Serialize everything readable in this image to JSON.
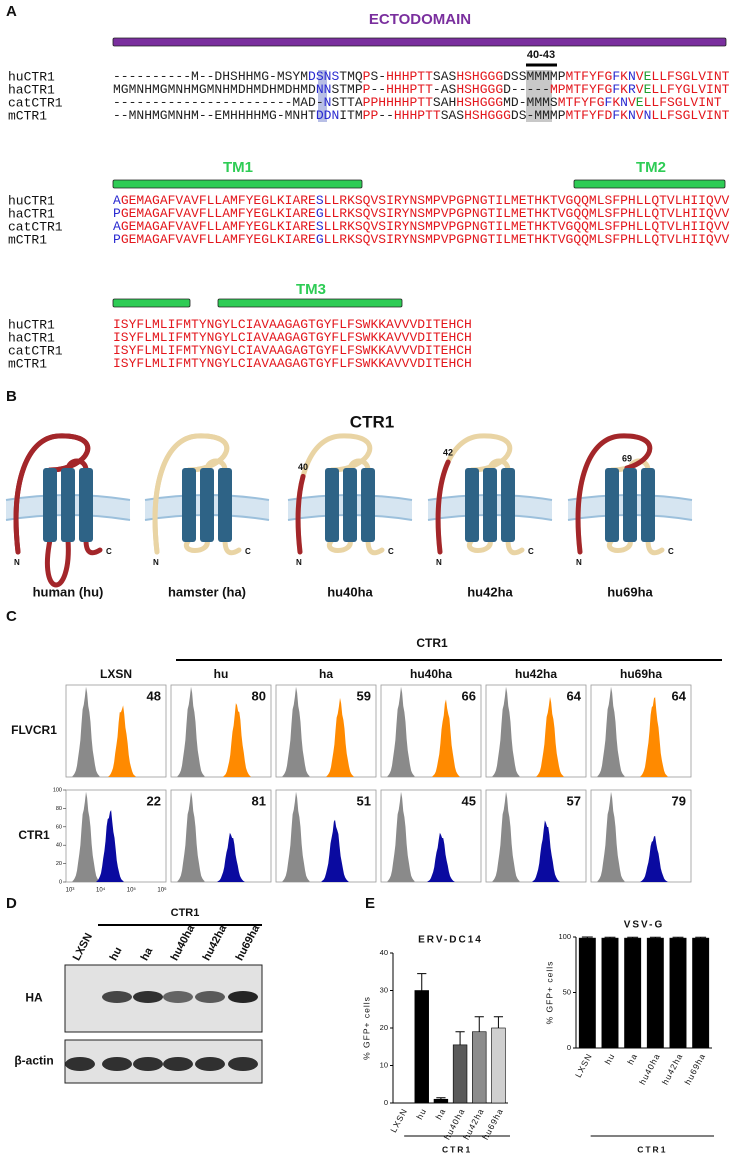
{
  "panel_a": {
    "letter": "A",
    "annotation": "40-43",
    "blocks": [
      {
        "domains": [
          {
            "label": "ECTODOMAIN",
            "color": "#7a2f9e"
          }
        ],
        "rows": [
          {
            "name": "huCTR1",
            "segments": [
              {
                "text": "----------M--DHSHHMG-MSYM",
                "color": "#222222"
              },
              {
                "text": "DSNS",
                "color": "#2a2ad0"
              },
              {
                "text": "TMQ",
                "color": "#222222"
              },
              {
                "text": "P",
                "color": "#e3161c"
              },
              {
                "text": "S-",
                "color": "#222222"
              },
              {
                "text": "HHHPTT",
                "color": "#e3161c"
              },
              {
                "text": "SAS",
                "color": "#222222"
              },
              {
                "text": "HSHGGG",
                "color": "#e3161c"
              },
              {
                "text": "DSSMMMMP",
                "color": "#222222"
              },
              {
                "text": "MTFYFG",
                "color": "#e3161c"
              },
              {
                "text": "F",
                "color": "#2a2ad0"
              },
              {
                "text": "K",
                "color": "#e3161c"
              },
              {
                "text": "N",
                "color": "#2a2ad0"
              },
              {
                "text": "V",
                "color": "#e3161c"
              },
              {
                "text": "E",
                "color": "#1e9e2e"
              },
              {
                "text": "LLFSGLVINT",
                "color": "#e3161c"
              }
            ]
          },
          {
            "name": "haCTR1",
            "segments": [
              {
                "text": "MGMNHMGMNHMGMNHMDHMDHMDHMD",
                "color": "#222222"
              },
              {
                "text": "NN",
                "color": "#2a2ad0"
              },
              {
                "text": "STMP",
                "color": "#222222"
              },
              {
                "text": "P",
                "color": "#e3161c"
              },
              {
                "text": "--",
                "color": "#222222"
              },
              {
                "text": "HHHPTT",
                "color": "#e3161c"
              },
              {
                "text": "-AS",
                "color": "#222222"
              },
              {
                "text": "HSHGGG",
                "color": "#e3161c"
              },
              {
                "text": "D-----",
                "color": "#222222"
              },
              {
                "text": "MPMTFYFG",
                "color": "#e3161c"
              },
              {
                "text": "F",
                "color": "#2a2ad0"
              },
              {
                "text": "K",
                "color": "#e3161c"
              },
              {
                "text": "R",
                "color": "#2a2ad0"
              },
              {
                "text": "V",
                "color": "#e3161c"
              },
              {
                "text": "E",
                "color": "#1e9e2e"
              },
              {
                "text": "LLFYGLVINT",
                "color": "#e3161c"
              }
            ]
          },
          {
            "name": "catCTR1",
            "segments": [
              {
                "text": "-----------------------MAD-",
                "color": "#222222"
              },
              {
                "text": "N",
                "color": "#2a2ad0"
              },
              {
                "text": "STTA",
                "color": "#222222"
              },
              {
                "text": "PPHHHHPTT",
                "color": "#e3161c"
              },
              {
                "text": "SAH",
                "color": "#222222"
              },
              {
                "text": "HSHGGG",
                "color": "#e3161c"
              },
              {
                "text": "MD-MMMS",
                "color": "#222222"
              },
              {
                "text": "MTFYFG",
                "color": "#e3161c"
              },
              {
                "text": "F",
                "color": "#2a2ad0"
              },
              {
                "text": "K",
                "color": "#e3161c"
              },
              {
                "text": "N",
                "color": "#2a2ad0"
              },
              {
                "text": "V",
                "color": "#e3161c"
              },
              {
                "text": "E",
                "color": "#1e9e2e"
              },
              {
                "text": "LLFSGLVINT",
                "color": "#e3161c"
              }
            ]
          },
          {
            "name": "mCTR1",
            "segments": [
              {
                "text": "--MNHMGMNHM--EMHHHHMG-MNHT",
                "color": "#222222"
              },
              {
                "text": "DDN",
                "color": "#2a2ad0"
              },
              {
                "text": "ITM",
                "color": "#222222"
              },
              {
                "text": "PP",
                "color": "#e3161c"
              },
              {
                "text": "--",
                "color": "#222222"
              },
              {
                "text": "HHHPTT",
                "color": "#e3161c"
              },
              {
                "text": "SAS",
                "color": "#222222"
              },
              {
                "text": "HSHGGG",
                "color": "#e3161c"
              },
              {
                "text": "DS-MMMP",
                "color": "#222222"
              },
              {
                "text": "MTFYFD",
                "color": "#e3161c"
              },
              {
                "text": "F",
                "color": "#2a2ad0"
              },
              {
                "text": "K",
                "color": "#e3161c"
              },
              {
                "text": "N",
                "color": "#2a2ad0"
              },
              {
                "text": "V",
                "color": "#e3161c"
              },
              {
                "text": "N",
                "color": "#2a2ad0"
              },
              {
                "text": "LLFSGLVINT",
                "color": "#e3161c"
              }
            ]
          }
        ]
      },
      {
        "domains": [
          {
            "label": "TM1",
            "color": "#2ecc55"
          },
          {
            "label": "TM2",
            "color": "#2ecc55"
          }
        ],
        "rows": [
          {
            "name": "huCTR1",
            "segments": [
              {
                "text": "A",
                "color": "#2a2ad0"
              },
              {
                "text": "GEMAGAFVAVFLLAMFYEGLKIARE",
                "color": "#e3161c"
              },
              {
                "text": "S",
                "color": "#2a2ad0"
              },
              {
                "text": "LLRKSQVSIRYNSMPVPGPNGTILMETHKTVGQQMLSFPHLLQTVLHIIQVV",
                "color": "#e3161c"
              }
            ]
          },
          {
            "name": "haCTR1",
            "segments": [
              {
                "text": "P",
                "color": "#2a2ad0"
              },
              {
                "text": "GEMAGAFVAVFLLAMFYEGLKIARE",
                "color": "#e3161c"
              },
              {
                "text": "G",
                "color": "#2a2ad0"
              },
              {
                "text": "LLRKSQVSIRYNSMPVPGPNGTILMETHKTVGQQMLSFPHLLQTVLHIIQVV",
                "color": "#e3161c"
              }
            ]
          },
          {
            "name": "catCTR1",
            "segments": [
              {
                "text": "A",
                "color": "#2a2ad0"
              },
              {
                "text": "GEMAGAFVAVFLLAMFYEGLKIARE",
                "color": "#e3161c"
              },
              {
                "text": "S",
                "color": "#2a2ad0"
              },
              {
                "text": "LLRKSQVSIRYNSMPVPGPNGTILMETHKTVGQQMLSFPHLLQTVLHIIQVV",
                "color": "#e3161c"
              }
            ]
          },
          {
            "name": "mCTR1",
            "segments": [
              {
                "text": "P",
                "color": "#2a2ad0"
              },
              {
                "text": "GEMAGAFVAVFLLAMFYEGLKIARE",
                "color": "#e3161c"
              },
              {
                "text": "G",
                "color": "#2a2ad0"
              },
              {
                "text": "LLRKSQVSIRYNSMPVPGPNGTILMETHKTVGQQMLSFPHLLQTVLHIIQVV",
                "color": "#e3161c"
              }
            ]
          }
        ]
      },
      {
        "domains": [
          {
            "label": "TM3",
            "color": "#2ecc55"
          }
        ],
        "rows": [
          {
            "name": "huCTR1",
            "segments": [
              {
                "text": "ISYFLMLIFMTYNGYLCIAVAAGAGTGYFLFSWKKAVVVDITEHCH",
                "color": "#e3161c"
              }
            ]
          },
          {
            "name": "haCTR1",
            "segments": [
              {
                "text": "ISYFLMLIFMTYNGYLCIAVAAGAGTGYFLFSWKKAVVVDITEHCH",
                "color": "#e3161c"
              }
            ]
          },
          {
            "name": "catCTR1",
            "segments": [
              {
                "text": "ISYFLMLIFMTYNGYLCIAVAAGAGTGYFLFSWKKAVVVDITEHCH",
                "color": "#e3161c"
              }
            ]
          },
          {
            "name": "mCTR1",
            "segments": [
              {
                "text": "ISYFLMLIFMTYNGYLCIAVAAGAGTGYFLFSWKKAVVVDITEHCH",
                "color": "#e3161c"
              }
            ]
          }
        ]
      }
    ]
  },
  "panel_b": {
    "letter": "B",
    "title": "CTR1",
    "n_label": "N",
    "c_label": "C",
    "constructs": [
      {
        "label": "human (hu)",
        "n_color": "#a3262a",
        "body_color": "#a3262a"
      },
      {
        "label": "hamster (ha)",
        "n_color": "#e9d4a4",
        "body_color": "#e9d4a4"
      },
      {
        "label": "hu40ha",
        "junction": 40,
        "n_color": "#a3262a",
        "body_color": "#e9d4a4"
      },
      {
        "label": "hu42ha",
        "junction": 42,
        "n_color": "#a3262a",
        "body_color": "#e9d4a4"
      },
      {
        "label": "hu69ha",
        "junction": 69,
        "n_color": "#a3262a",
        "body_color": "#e9d4a4"
      }
    ]
  },
  "panel_c": {
    "letter": "C",
    "group_label": "CTR1",
    "columns": [
      "LXSN",
      "hu",
      "ha",
      "hu40ha",
      "hu42ha",
      "hu69ha"
    ],
    "rows": [
      {
        "label": "FLVCR1",
        "color": "#ff8a00",
        "values": [
          48,
          80,
          59,
          66,
          64,
          64
        ]
      },
      {
        "label": "CTR1",
        "color": "#0a0aa0",
        "values": [
          22,
          81,
          51,
          45,
          57,
          79
        ]
      }
    ],
    "y_ticks": [
      0,
      20,
      40,
      60,
      80,
      100
    ],
    "x_ticks": [
      "10³",
      "10⁴",
      "10⁵",
      "10⁶"
    ]
  },
  "panel_d": {
    "letter": "D",
    "group_label": "CTR1",
    "lanes": [
      "LXSN",
      "hu",
      "ha",
      "hu40ha",
      "hu42ha",
      "hu69ha"
    ],
    "rows": [
      "HA",
      "β-actin"
    ]
  },
  "panel_e": {
    "letter": "E"
  },
  "chart_data": [
    {
      "type": "bar",
      "title": "ERV-DC14",
      "ylabel": "% GFP+ cells",
      "group_label": "CTR1",
      "categories": [
        "LXSN",
        "hu",
        "ha",
        "hu40ha",
        "hu42ha",
        "hu69ha"
      ],
      "values": [
        0,
        30,
        1,
        15.5,
        19,
        20
      ],
      "errors": [
        0,
        4.5,
        0.4,
        3.5,
        4,
        3
      ],
      "colors": [
        "#000000",
        "#000000",
        "#000000",
        "#5a5a5a",
        "#8c8c8c",
        "#d0d0d0"
      ],
      "ylim": [
        0,
        40
      ],
      "yticks": [
        0,
        10,
        20,
        30,
        40
      ]
    },
    {
      "type": "bar",
      "title": "VSV-G",
      "ylabel": "% GFP+ cells",
      "group_label": "CTR1",
      "categories": [
        "LXSN",
        "hu",
        "ha",
        "hu40ha",
        "hu42ha",
        "hu69ha"
      ],
      "values": [
        99,
        99,
        99,
        99,
        99,
        99
      ],
      "errors": [
        1,
        0.8,
        0.8,
        0.8,
        0.8,
        0.8
      ],
      "colors": [
        "#000000",
        "#000000",
        "#000000",
        "#000000",
        "#000000",
        "#000000"
      ],
      "ylim": [
        0,
        100
      ],
      "yticks": [
        0,
        50,
        100
      ]
    }
  ]
}
